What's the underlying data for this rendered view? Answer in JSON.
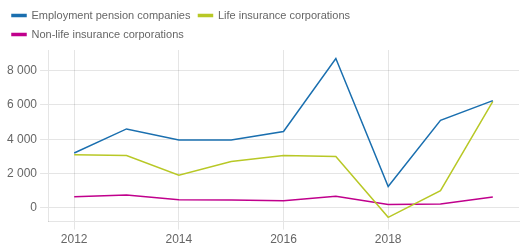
{
  "chart_data": {
    "type": "line",
    "x": [
      2012,
      2013,
      2014,
      2015,
      2016,
      2017,
      2018,
      2019,
      2020
    ],
    "series": [
      {
        "name": "Employment pension companies",
        "color": "#1a6faf",
        "values": [
          3200,
          4600,
          3950,
          3950,
          4450,
          8700,
          1250,
          5100,
          6250
        ]
      },
      {
        "name": "Life insurance corporations",
        "color": "#b8c826",
        "values": [
          3100,
          3050,
          1900,
          2700,
          3050,
          3000,
          -550,
          1000,
          6200
        ]
      },
      {
        "name": "Non-life insurance corporations",
        "color": "#c0008c",
        "values": [
          650,
          750,
          480,
          460,
          420,
          680,
          190,
          220,
          630
        ]
      }
    ],
    "xlim": [
      2011.5,
      2020.5
    ],
    "xticks": [
      2012,
      2014,
      2016,
      2018
    ],
    "ylim": [
      -800,
      9200
    ],
    "yticks": [
      0,
      {
        "value": 2000,
        "label": "2 000"
      },
      {
        "value": 4000,
        "label": "4 000"
      },
      {
        "value": 6000,
        "label": "6 000"
      },
      {
        "value": 8000,
        "label": "8 000"
      }
    ],
    "grid": true,
    "legend": "upper left"
  }
}
